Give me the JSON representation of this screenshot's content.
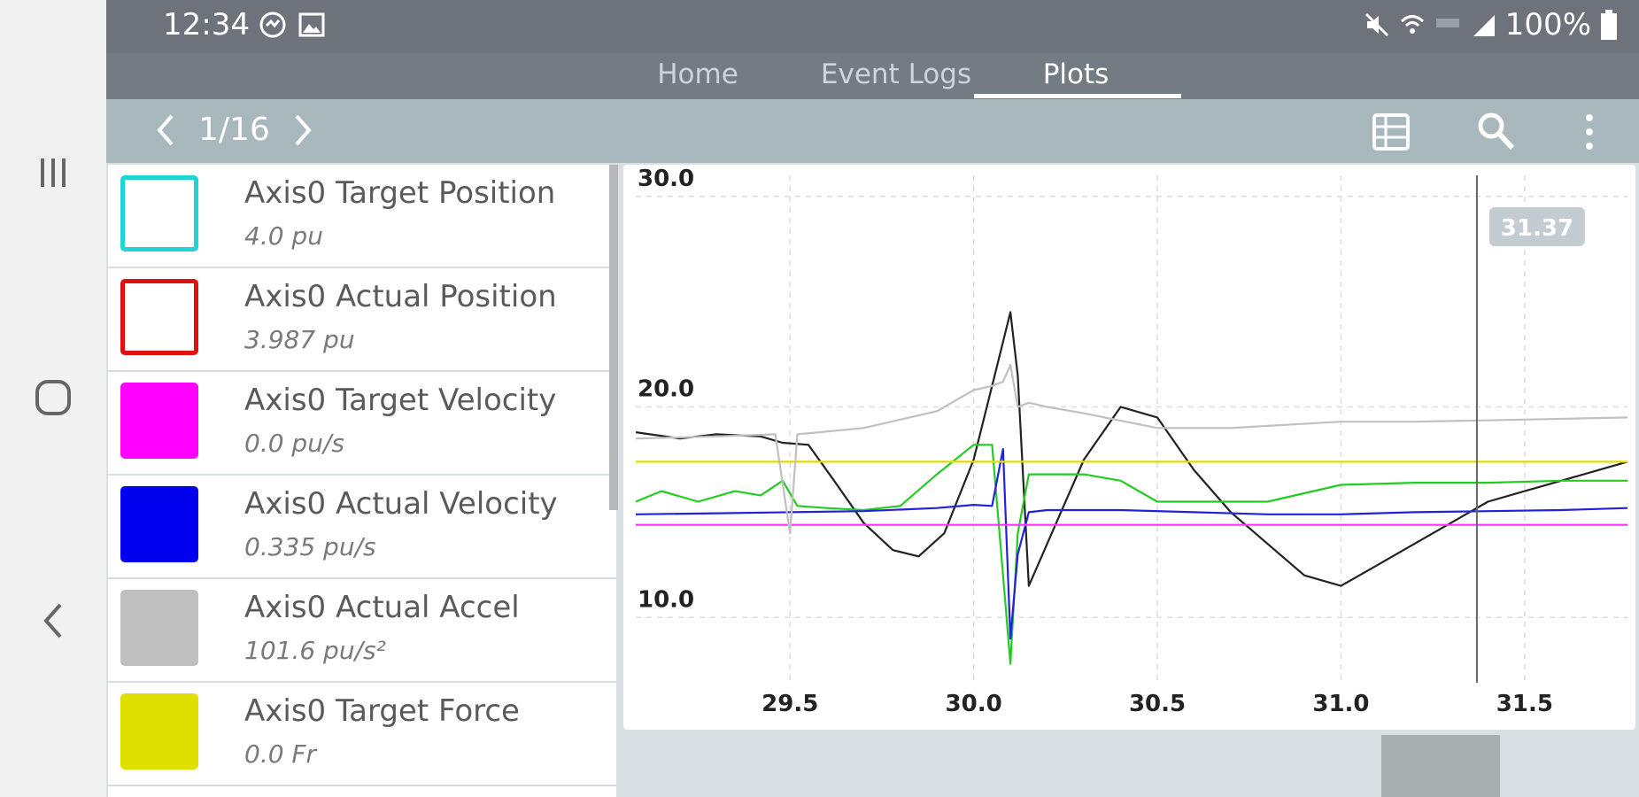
{
  "status_bar": {
    "time": "12:34",
    "battery": "100%",
    "left_icons": [
      "sync-icon",
      "image-icon"
    ],
    "right_icons": [
      "mute-icon",
      "wifi-icon",
      "lte-icon",
      "signal-icon",
      "battery-icon"
    ]
  },
  "tabs": [
    {
      "label": "Home",
      "active": false
    },
    {
      "label": "Event Logs",
      "active": false
    },
    {
      "label": "Plots",
      "active": true
    }
  ],
  "toolbar": {
    "page": "1/16",
    "icons": [
      "chevron-left-icon",
      "chevron-right-icon",
      "table-icon",
      "zoom-icon",
      "more-vert-icon"
    ]
  },
  "legend": [
    {
      "name": "Axis0 Target Position",
      "value": "4.0 pu",
      "color": "#22d3d3",
      "style": "outline"
    },
    {
      "name": "Axis0 Actual Position",
      "value": "3.987 pu",
      "color": "#e01010",
      "style": "outline"
    },
    {
      "name": "Axis0 Target Velocity",
      "value": "0.0 pu/s",
      "color": "#ff00ff",
      "style": "fill"
    },
    {
      "name": "Axis0 Actual Velocity",
      "value": "0.335 pu/s",
      "color": "#0000ee",
      "style": "fill"
    },
    {
      "name": "Axis0 Actual Accel",
      "value": "101.6 pu/s²",
      "color": "#bfbfbf",
      "style": "fill"
    },
    {
      "name": "Axis0 Target Force",
      "value": "0.0 Fr",
      "color": "#e0e000",
      "style": "fill"
    }
  ],
  "chart_data": {
    "type": "line",
    "title": "",
    "xlabel": "",
    "ylabel": "",
    "xlim": [
      29.08,
      31.78
    ],
    "ylim": [
      6.9,
      31.0
    ],
    "x_ticks": [
      "29.5",
      "30.0",
      "30.5",
      "31.0",
      "31.5"
    ],
    "x_tick_values": [
      29.5,
      30.0,
      30.5,
      31.0,
      31.5
    ],
    "y_ticks": [
      "10.0",
      "20.0",
      "30.0"
    ],
    "y_tick_values": [
      10.0,
      20.0,
      30.0
    ],
    "grid": true,
    "cursor": {
      "x": 31.37,
      "label": "31.37"
    },
    "series": [
      {
        "color": "#222222",
        "x": [
          29.08,
          29.2,
          29.3,
          29.42,
          29.48,
          29.55,
          29.62,
          29.7,
          29.78,
          29.85,
          29.92,
          30.0,
          30.05,
          30.1,
          30.12,
          30.15,
          30.2,
          30.3,
          30.4,
          30.5,
          30.6,
          30.7,
          30.8,
          30.9,
          31.0,
          31.1,
          31.2,
          31.3,
          31.4,
          31.5,
          31.6,
          31.7,
          31.78
        ],
        "y": [
          18.8,
          18.5,
          18.7,
          18.6,
          18.3,
          18.2,
          16.5,
          14.5,
          13.2,
          12.9,
          14.0,
          17.5,
          21.0,
          24.5,
          21.5,
          11.5,
          13.5,
          17.5,
          20.0,
          19.5,
          17.0,
          15.0,
          13.5,
          12.0,
          11.5,
          12.5,
          13.5,
          14.5,
          15.5,
          16.0,
          16.5,
          17.0,
          17.4
        ]
      },
      {
        "color": "#22cc22",
        "x": [
          29.08,
          29.15,
          29.25,
          29.35,
          29.42,
          29.48,
          29.52,
          29.6,
          29.7,
          29.8,
          29.9,
          30.0,
          30.05,
          30.08,
          30.1,
          30.12,
          30.15,
          30.2,
          30.3,
          30.4,
          30.5,
          30.6,
          30.8,
          31.0,
          31.2,
          31.4,
          31.6,
          31.78
        ],
        "y": [
          15.5,
          16.0,
          15.5,
          16.0,
          15.8,
          16.5,
          15.3,
          15.2,
          15.1,
          15.3,
          16.8,
          18.2,
          18.2,
          12.0,
          7.8,
          14.0,
          16.8,
          16.8,
          16.8,
          16.5,
          15.5,
          15.5,
          15.5,
          16.3,
          16.4,
          16.4,
          16.5,
          16.5
        ]
      },
      {
        "color": "#2222dd",
        "x": [
          29.08,
          29.3,
          29.5,
          29.7,
          29.9,
          30.0,
          30.05,
          30.08,
          30.1,
          30.12,
          30.15,
          30.2,
          30.4,
          30.6,
          30.8,
          31.0,
          31.2,
          31.4,
          31.6,
          31.78
        ],
        "y": [
          14.9,
          14.95,
          15.0,
          15.05,
          15.2,
          15.35,
          15.3,
          18.0,
          9.0,
          13.0,
          15.0,
          15.1,
          15.1,
          15.0,
          14.9,
          14.9,
          15.0,
          15.05,
          15.1,
          15.2
        ]
      },
      {
        "color": "#ff33ff",
        "x": [
          29.08,
          31.78
        ],
        "y": [
          14.4,
          14.4
        ]
      },
      {
        "color": "#dddd00",
        "x": [
          29.08,
          31.78
        ],
        "y": [
          17.4,
          17.4
        ]
      },
      {
        "color": "#c0c0c0",
        "x": [
          29.08,
          29.3,
          29.46,
          29.5,
          29.52,
          29.58,
          29.7,
          29.9,
          30.0,
          30.05,
          30.08,
          30.1,
          30.12,
          30.15,
          30.2,
          30.3,
          30.5,
          30.7,
          31.0,
          31.2,
          31.5,
          31.78
        ],
        "y": [
          18.5,
          18.6,
          18.7,
          14.0,
          18.7,
          18.8,
          19.0,
          19.8,
          20.8,
          21.0,
          21.2,
          22.0,
          20.0,
          20.2,
          20.0,
          19.7,
          19.0,
          19.0,
          19.3,
          19.3,
          19.4,
          19.5
        ]
      }
    ]
  }
}
